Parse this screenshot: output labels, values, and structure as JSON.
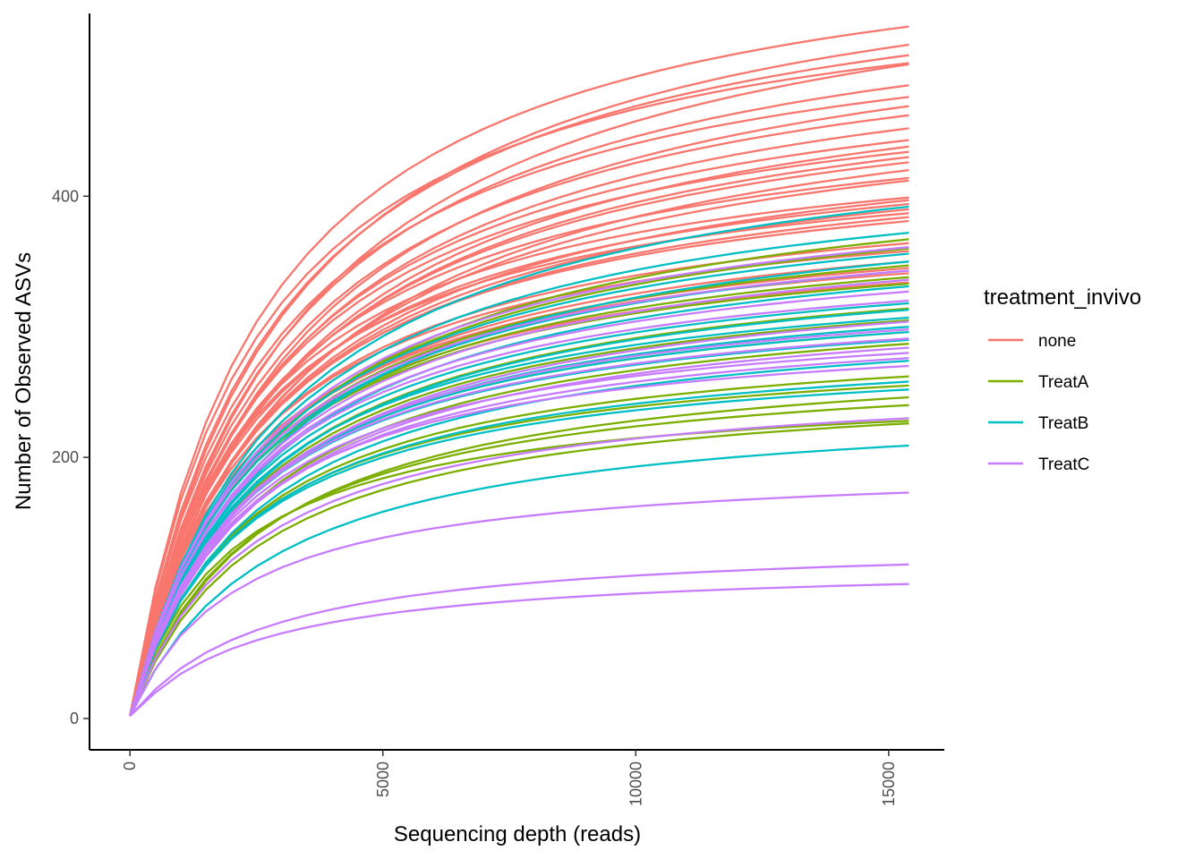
{
  "chart_data": {
    "type": "line",
    "xlabel": "Sequencing depth (reads)",
    "ylabel": "Number of Observed ASVs",
    "xlim": [
      -800,
      16100
    ],
    "ylim": [
      -24,
      540
    ],
    "x_ticks": [
      0,
      5000,
      10000,
      15000
    ],
    "y_ticks": [
      0,
      200,
      400
    ],
    "x_tick_labels": [
      "0",
      "5000",
      "10000",
      "15000"
    ],
    "y_tick_labels": [
      "0",
      "200",
      "400"
    ],
    "grid": false,
    "legend": {
      "title": "treatment_invivo",
      "position": "right",
      "entries": [
        {
          "label": "none",
          "color": "#F8766D"
        },
        {
          "label": "TreatA",
          "color": "#7CAE00"
        },
        {
          "label": "TreatB",
          "color": "#00BFC4"
        },
        {
          "label": "TreatC",
          "color": "#C77CFF"
        }
      ]
    },
    "x_max_reads": 15400,
    "curve_model": "michaelis-menten",
    "series": [
      {
        "group": "none",
        "final": 530,
        "half": 2600
      },
      {
        "group": "none",
        "final": 516,
        "half": 3000
      },
      {
        "group": "none",
        "final": 508,
        "half": 2800
      },
      {
        "group": "none",
        "final": 502,
        "half": 2500
      },
      {
        "group": "none",
        "final": 501,
        "half": 3300
      },
      {
        "group": "none",
        "final": 485,
        "half": 3000
      },
      {
        "group": "none",
        "final": 476,
        "half": 2700
      },
      {
        "group": "none",
        "final": 469,
        "half": 3200
      },
      {
        "group": "none",
        "final": 462,
        "half": 2900
      },
      {
        "group": "none",
        "final": 452,
        "half": 3000
      },
      {
        "group": "none",
        "final": 443,
        "half": 2800
      },
      {
        "group": "none",
        "final": 438,
        "half": 3100
      },
      {
        "group": "none",
        "final": 434,
        "half": 2700
      },
      {
        "group": "none",
        "final": 430,
        "half": 3000
      },
      {
        "group": "none",
        "final": 426,
        "half": 2900
      },
      {
        "group": "none",
        "final": 420,
        "half": 3200
      },
      {
        "group": "none",
        "final": 414,
        "half": 2600
      },
      {
        "group": "none",
        "final": 412,
        "half": 3000
      },
      {
        "group": "none",
        "final": 399,
        "half": 2400
      },
      {
        "group": "none",
        "final": 397,
        "half": 2800
      },
      {
        "group": "none",
        "final": 394,
        "half": 2500
      },
      {
        "group": "none",
        "final": 390,
        "half": 2700
      },
      {
        "group": "none",
        "final": 387,
        "half": 2300
      },
      {
        "group": "none",
        "final": 384,
        "half": 2600
      },
      {
        "group": "none",
        "final": 381,
        "half": 2500
      },
      {
        "group": "none",
        "final": 364,
        "half": 2400
      },
      {
        "group": "none",
        "final": 358,
        "half": 2300
      },
      {
        "group": "none",
        "final": 350,
        "half": 2500
      },
      {
        "group": "none",
        "final": 345,
        "half": 2400
      },
      {
        "group": "none",
        "final": 341,
        "half": 2200
      },
      {
        "group": "none",
        "final": 334,
        "half": 2300
      },
      {
        "group": "TreatA",
        "final": 367,
        "half": 3000
      },
      {
        "group": "TreatA",
        "final": 360,
        "half": 2800
      },
      {
        "group": "TreatA",
        "final": 347,
        "half": 2600
      },
      {
        "group": "TreatA",
        "final": 338,
        "half": 2500
      },
      {
        "group": "TreatA",
        "final": 333,
        "half": 2400
      },
      {
        "group": "TreatA",
        "final": 314,
        "half": 2600
      },
      {
        "group": "TreatA",
        "final": 305,
        "half": 2500
      },
      {
        "group": "TreatA",
        "final": 296,
        "half": 2400
      },
      {
        "group": "TreatA",
        "final": 287,
        "half": 2500
      },
      {
        "group": "TreatA",
        "final": 262,
        "half": 2300
      },
      {
        "group": "TreatA",
        "final": 255,
        "half": 2200
      },
      {
        "group": "TreatA",
        "final": 246,
        "half": 2600
      },
      {
        "group": "TreatA",
        "final": 240,
        "half": 2400
      },
      {
        "group": "TreatA",
        "final": 228,
        "half": 2000
      },
      {
        "group": "TreatA",
        "final": 226,
        "half": 2500
      },
      {
        "group": "TreatB",
        "final": 392,
        "half": 3000
      },
      {
        "group": "TreatB",
        "final": 372,
        "half": 2800
      },
      {
        "group": "TreatB",
        "final": 356,
        "half": 2700
      },
      {
        "group": "TreatB",
        "final": 350,
        "half": 2900
      },
      {
        "group": "TreatB",
        "final": 343,
        "half": 2600
      },
      {
        "group": "TreatB",
        "final": 331,
        "half": 2700
      },
      {
        "group": "TreatB",
        "final": 318,
        "half": 2500
      },
      {
        "group": "TreatB",
        "final": 313,
        "half": 2600
      },
      {
        "group": "TreatB",
        "final": 307,
        "half": 2400
      },
      {
        "group": "TreatB",
        "final": 300,
        "half": 2500
      },
      {
        "group": "TreatB",
        "final": 296,
        "half": 2400
      },
      {
        "group": "TreatB",
        "final": 290,
        "half": 2300
      },
      {
        "group": "TreatB",
        "final": 274,
        "half": 2500
      },
      {
        "group": "TreatB",
        "final": 258,
        "half": 2300
      },
      {
        "group": "TreatB",
        "final": 252,
        "half": 2200
      },
      {
        "group": "TreatB",
        "final": 209,
        "half": 2800
      },
      {
        "group": "TreatC",
        "final": 361,
        "half": 2700
      },
      {
        "group": "TreatC",
        "final": 343,
        "half": 2500
      },
      {
        "group": "TreatC",
        "final": 336,
        "half": 2600
      },
      {
        "group": "TreatC",
        "final": 327,
        "half": 2500
      },
      {
        "group": "TreatC",
        "final": 320,
        "half": 2400
      },
      {
        "group": "TreatC",
        "final": 304,
        "half": 2600
      },
      {
        "group": "TreatC",
        "final": 298,
        "half": 2400
      },
      {
        "group": "TreatC",
        "final": 291,
        "half": 2300
      },
      {
        "group": "TreatC",
        "final": 284,
        "half": 2500
      },
      {
        "group": "TreatC",
        "final": 280,
        "half": 2200
      },
      {
        "group": "TreatC",
        "final": 276,
        "half": 2300
      },
      {
        "group": "TreatC",
        "final": 270,
        "half": 2100
      },
      {
        "group": "TreatC",
        "final": 230,
        "half": 2400
      },
      {
        "group": "TreatC",
        "final": 173,
        "half": 2100
      },
      {
        "group": "TreatC",
        "final": 118,
        "half": 2600
      },
      {
        "group": "TreatC",
        "final": 103,
        "half": 2500
      }
    ]
  }
}
